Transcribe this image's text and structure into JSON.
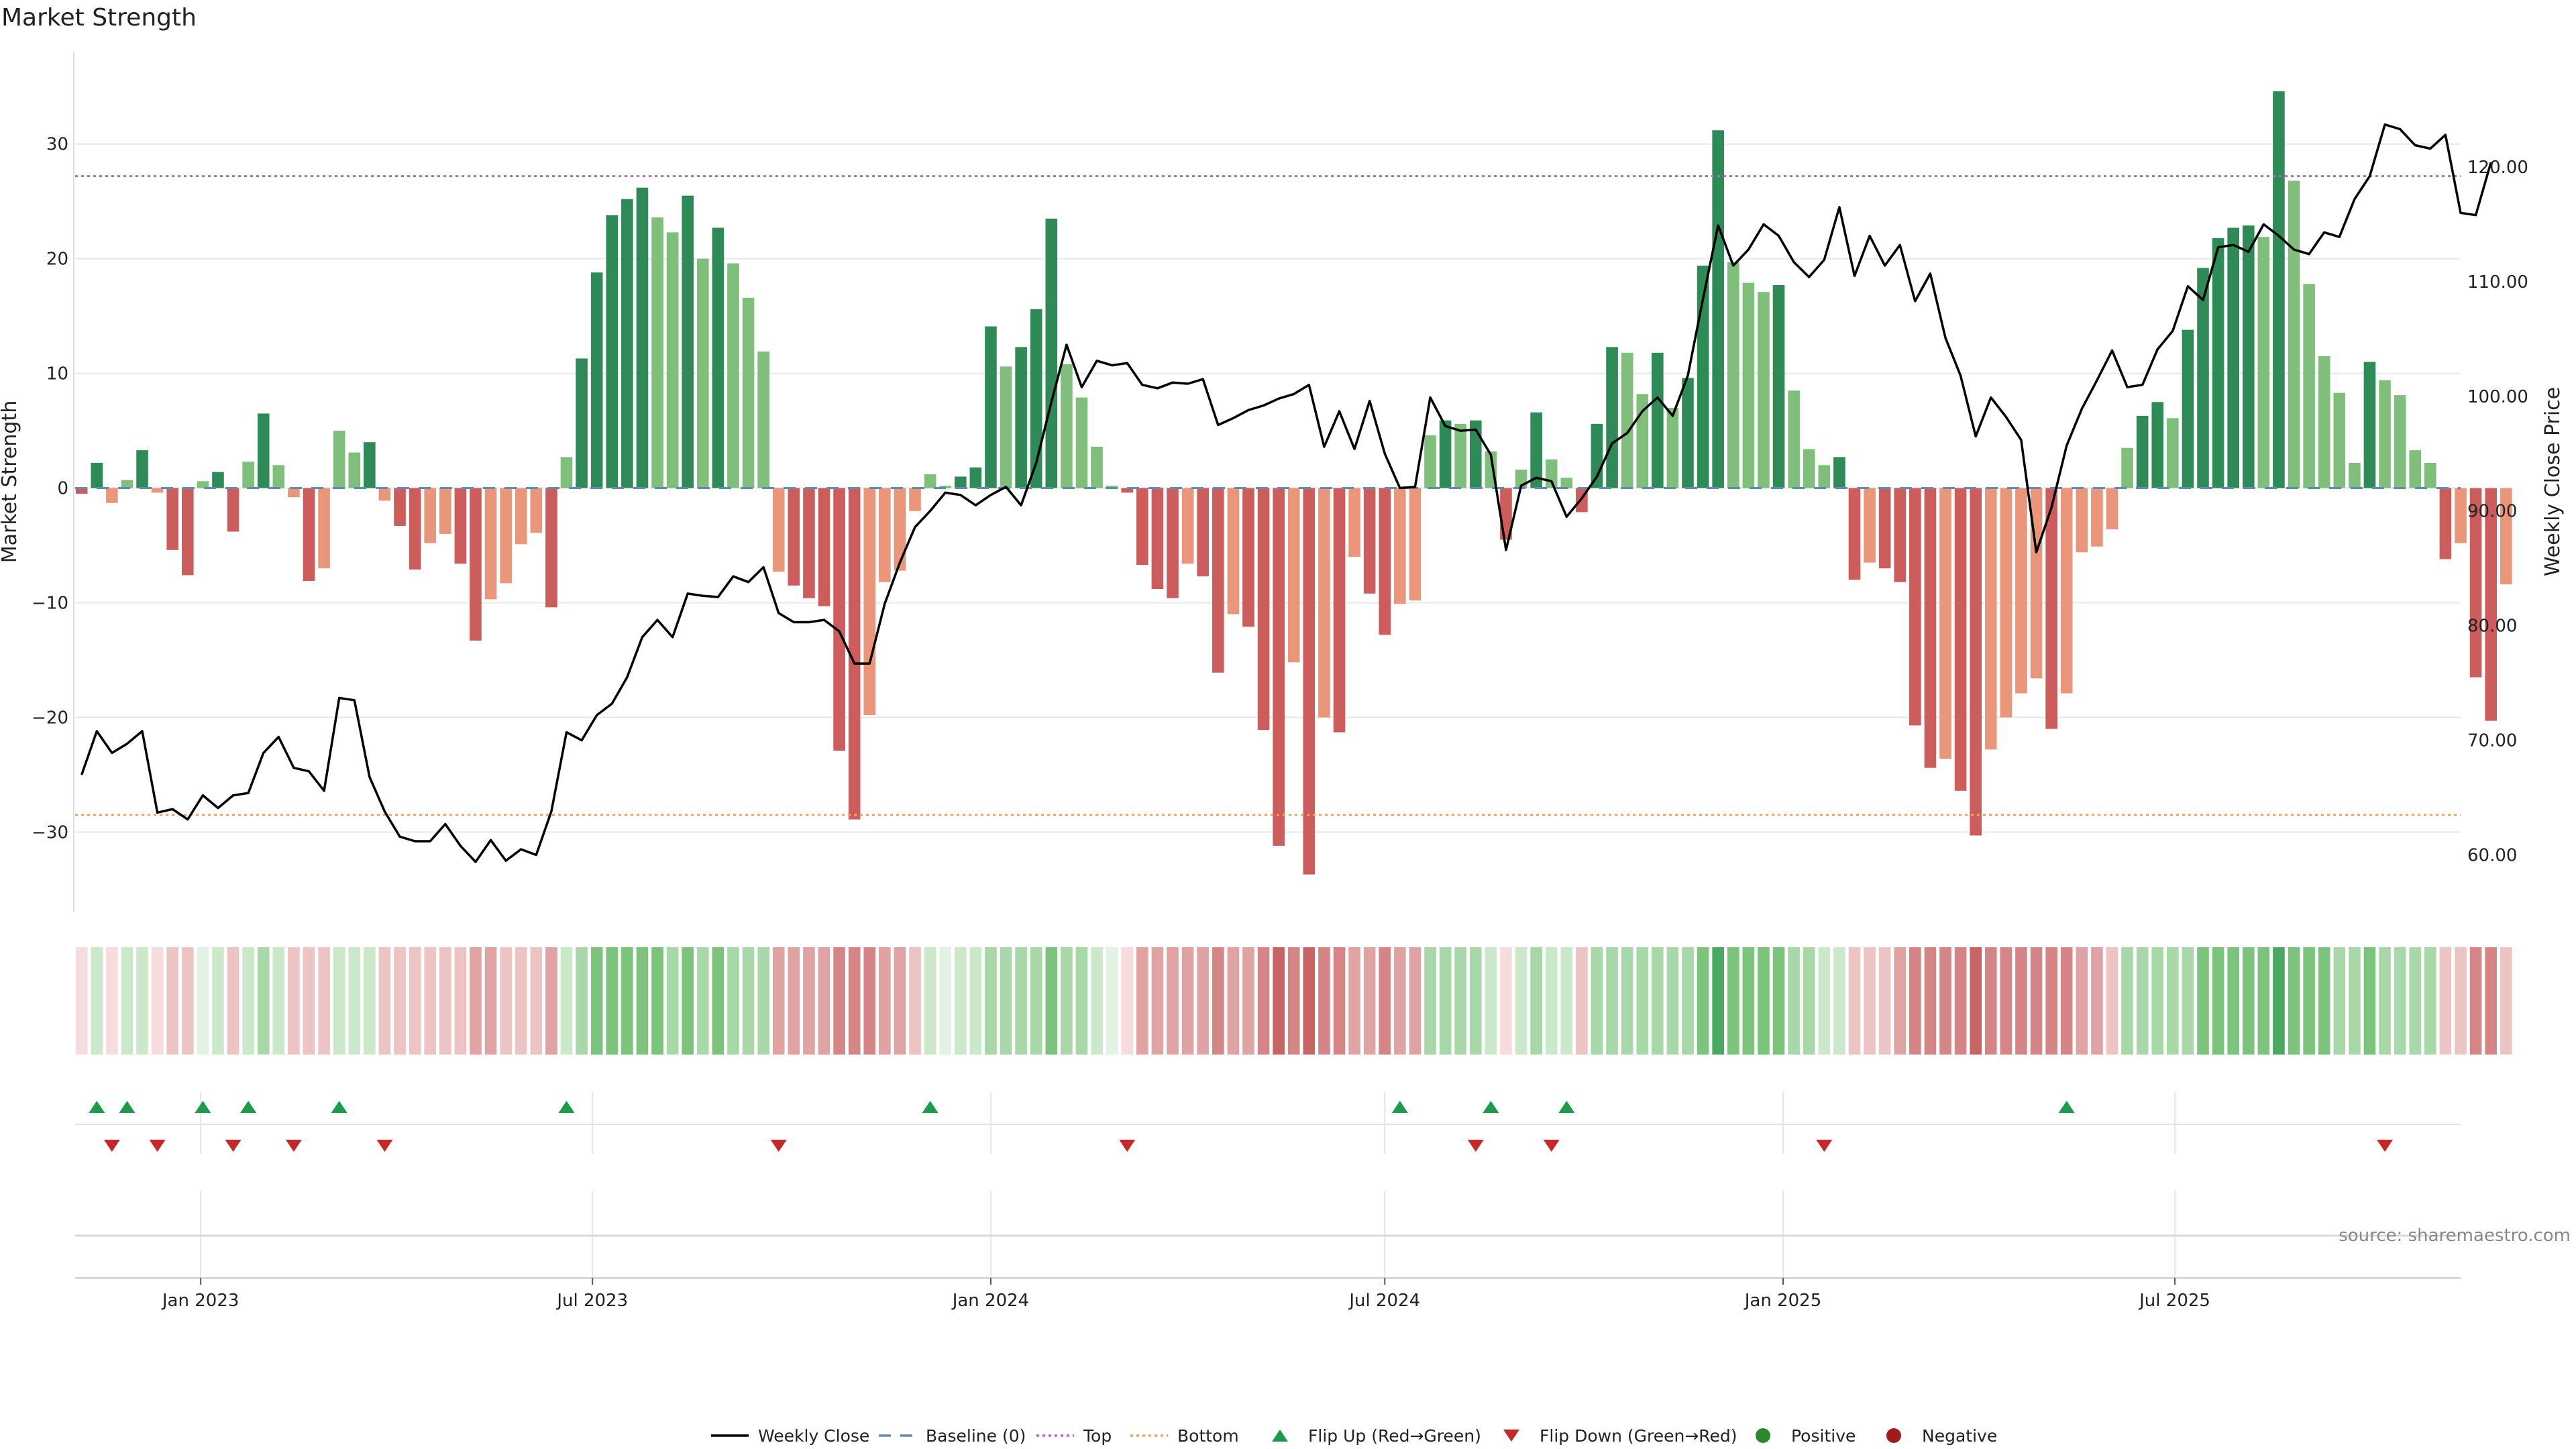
{
  "chart_data": {
    "type": "bar",
    "title": "Market Strength",
    "ylabel_left": "Market Strength",
    "ylabel_right": "Weekly Close Price",
    "ylim_left": [
      -37,
      38
    ],
    "ylim_right": [
      55,
      130
    ],
    "yticks_left": [
      30,
      20,
      10,
      0,
      -10,
      -20,
      -30
    ],
    "ytick_labels_left": [
      "30",
      "20",
      "10",
      "0",
      "−10",
      "−20",
      "−30"
    ],
    "yticks_right": [
      120,
      110,
      100,
      90,
      80,
      70,
      60
    ],
    "ytick_labels_right": [
      "120.00",
      "110.00",
      "100.00",
      "90.00",
      "80.00",
      "70.00",
      "60.00"
    ],
    "x_start": "2022-11-04",
    "x_end": "2025-11-10",
    "week_start": "2022-11-07",
    "xticks": [
      {
        "date": "2023-01-01",
        "label": "Jan 2023"
      },
      {
        "date": "2023-07-01",
        "label": "Jul 2023"
      },
      {
        "date": "2024-01-01",
        "label": "Jan 2024"
      },
      {
        "date": "2024-07-01",
        "label": "Jul 2024"
      },
      {
        "date": "2025-01-01",
        "label": "Jan 2025"
      },
      {
        "date": "2025-07-01",
        "label": "Jul 2025"
      }
    ],
    "top_line": 27.2,
    "bottom_line": -28.5,
    "strength": [
      -0.5,
      2.2,
      -1.3,
      0.7,
      3.3,
      -0.4,
      -5.4,
      -7.6,
      0.6,
      1.4,
      -3.8,
      2.3,
      6.5,
      2.0,
      -0.8,
      -8.1,
      -7.0,
      5.0,
      3.1,
      4.0,
      -1.1,
      -3.3,
      -7.1,
      -4.8,
      -4.0,
      -6.6,
      -13.3,
      -9.7,
      -8.3,
      -4.9,
      -3.9,
      -10.4,
      2.7,
      11.3,
      18.8,
      23.8,
      25.2,
      26.2,
      23.6,
      22.3,
      25.5,
      20.0,
      22.7,
      19.6,
      16.6,
      11.9,
      -7.3,
      -8.5,
      -9.6,
      -10.3,
      -22.9,
      -28.9,
      -19.8,
      -8.2,
      -7.2,
      -2.0,
      1.2,
      0.2,
      1.0,
      1.8,
      14.1,
      10.6,
      12.3,
      15.6,
      23.5,
      10.8,
      7.9,
      3.6,
      0.2,
      -0.4,
      -6.7,
      -8.8,
      -9.6,
      -6.6,
      -7.7,
      -16.1,
      -11.0,
      -12.1,
      -21.1,
      -31.2,
      -15.2,
      -33.7,
      -20.0,
      -21.3,
      -6.0,
      -9.2,
      -12.8,
      -10.1,
      -9.8,
      4.6,
      5.9,
      5.6,
      5.9,
      3.2,
      -4.5,
      1.6,
      6.6,
      2.5,
      0.9,
      -2.1,
      5.6,
      12.3,
      11.8,
      8.2,
      11.8,
      7.0,
      9.6,
      19.4,
      31.2,
      19.7,
      17.9,
      17.1,
      17.7,
      8.5,
      3.4,
      2.0,
      2.7,
      -8.0,
      -6.5,
      -7.0,
      -8.2,
      -20.7,
      -24.4,
      -23.6,
      -26.4,
      -30.3,
      -22.8,
      -20.0,
      -17.9,
      -16.6,
      -21.0,
      -17.9,
      -5.6,
      -5.1,
      -3.6,
      3.5,
      6.3,
      7.5,
      6.1,
      13.8,
      19.2,
      21.8,
      22.7,
      22.9,
      21.9,
      34.6,
      26.8,
      17.8,
      11.5,
      8.3,
      2.2,
      11.0,
      9.4,
      8.1,
      3.3,
      2.2,
      -6.2,
      -4.8,
      -16.5,
      -20.3,
      -8.4
    ],
    "weekly_close": [
      67.0,
      70.8,
      68.9,
      69.7,
      70.8,
      63.7,
      64.0,
      63.1,
      65.2,
      64.1,
      65.2,
      65.4,
      68.9,
      70.3,
      67.6,
      67.3,
      65.6,
      73.7,
      73.5,
      66.8,
      63.8,
      61.6,
      61.2,
      61.2,
      62.7,
      60.8,
      59.4,
      61.3,
      59.5,
      60.5,
      60.0,
      63.8,
      70.7,
      70.0,
      72.2,
      73.2,
      75.5,
      79.0,
      80.5,
      79.0,
      82.8,
      82.6,
      82.5,
      84.3,
      83.8,
      85.1,
      81.1,
      80.3,
      80.3,
      80.5,
      79.5,
      76.7,
      76.7,
      81.9,
      85.5,
      88.6,
      90.0,
      91.6,
      91.4,
      90.5,
      91.4,
      92.1,
      90.5,
      94.2,
      99.5,
      104.5,
      100.8,
      103.1,
      102.7,
      102.9,
      101.0,
      100.7,
      101.2,
      101.1,
      101.5,
      97.5,
      98.1,
      98.8,
      99.2,
      99.8,
      100.2,
      101.0,
      95.6,
      98.7,
      95.4,
      99.6,
      95.0,
      92.0,
      92.1,
      99.9,
      97.4,
      97.0,
      97.1,
      94.9,
      86.6,
      92.2,
      92.9,
      92.6,
      89.5,
      91.1,
      93.0,
      95.9,
      96.8,
      98.7,
      99.9,
      98.3,
      101.8,
      108.5,
      114.9,
      111.4,
      112.8,
      115.0,
      114.0,
      111.7,
      110.4,
      111.9,
      116.5,
      110.5,
      114.0,
      111.4,
      113.2,
      108.3,
      110.7,
      105.1,
      101.8,
      96.5,
      99.9,
      98.2,
      96.2,
      86.4,
      90.3,
      95.7,
      98.9,
      101.4,
      104.0,
      100.8,
      101.0,
      104.1,
      105.7,
      109.6,
      108.4,
      113.0,
      113.2,
      112.6,
      115.0,
      114.0,
      112.8,
      112.4,
      114.3,
      113.9,
      117.2,
      119.2,
      123.7,
      123.3,
      121.9,
      121.6,
      122.8,
      116.0,
      115.8,
      120.4
    ],
    "heat_levels": [
      1,
      2,
      1,
      2,
      2,
      1,
      2,
      2,
      1,
      2,
      2,
      2,
      3,
      2,
      2,
      2,
      2,
      2,
      2,
      2,
      2,
      2,
      2,
      2,
      2,
      2,
      3,
      3,
      2,
      2,
      2,
      3,
      2,
      3,
      4,
      4,
      4,
      4,
      4,
      3,
      4,
      3,
      4,
      3,
      3,
      3,
      3,
      3,
      3,
      3,
      4,
      4,
      4,
      3,
      3,
      2,
      2,
      1,
      2,
      2,
      3,
      3,
      3,
      3,
      4,
      3,
      3,
      2,
      1,
      1,
      3,
      3,
      3,
      3,
      3,
      4,
      3,
      3,
      4,
      5,
      4,
      5,
      4,
      4,
      3,
      3,
      4,
      3,
      3,
      3,
      3,
      3,
      3,
      2,
      1,
      2,
      3,
      2,
      2,
      2,
      3,
      3,
      3,
      3,
      3,
      3,
      3,
      4,
      5,
      4,
      4,
      4,
      4,
      3,
      3,
      2,
      2,
      2,
      2,
      2,
      3,
      4,
      4,
      4,
      4,
      5,
      4,
      4,
      4,
      4,
      4,
      4,
      3,
      3,
      2,
      3,
      3,
      3,
      3,
      3,
      4,
      4,
      4,
      4,
      4,
      5,
      4,
      4,
      4,
      3,
      3,
      4,
      3,
      3,
      3,
      3,
      2,
      2,
      4,
      4,
      2
    ],
    "flip_up_weeks": [
      1,
      3,
      8,
      11,
      17,
      32,
      56,
      87,
      93,
      98,
      131
    ],
    "flip_down_weeks": [
      2,
      5,
      10,
      14,
      20,
      46,
      69,
      92,
      97,
      115,
      152
    ],
    "source_text": "source: sharemaestro.com",
    "colors": {
      "strong_green": "#2e8b57",
      "light_green": "#7fbf7b",
      "strong_red": "#cd5c5c",
      "light_red": "#e9967a",
      "top": "#b565c9",
      "bottom": "#f4a261",
      "baseline": "#5a8fae",
      "flip_up": "#1a9c4a",
      "flip_down": "#c62828",
      "positive": "#2a8a2a",
      "negative": "#a01c1c",
      "close": "#000000"
    },
    "legend": [
      {
        "label": "Weekly Close",
        "kind": "line",
        "color": "#000000"
      },
      {
        "label": "Baseline (0)",
        "kind": "dash",
        "color": "#5a8fae"
      },
      {
        "label": "Top",
        "kind": "dot",
        "color": "#b565c9"
      },
      {
        "label": "Bottom",
        "kind": "dot",
        "color": "#f4a261"
      },
      {
        "label": "Flip Up (Red→Green)",
        "kind": "tri-up",
        "color": "#1a9c4a"
      },
      {
        "label": "Flip Down (Green→Red)",
        "kind": "tri-down",
        "color": "#c62828"
      },
      {
        "label": "Positive",
        "kind": "circle",
        "color": "#2a8a2a"
      },
      {
        "label": "Negative",
        "kind": "circle",
        "color": "#a01c1c"
      }
    ]
  }
}
